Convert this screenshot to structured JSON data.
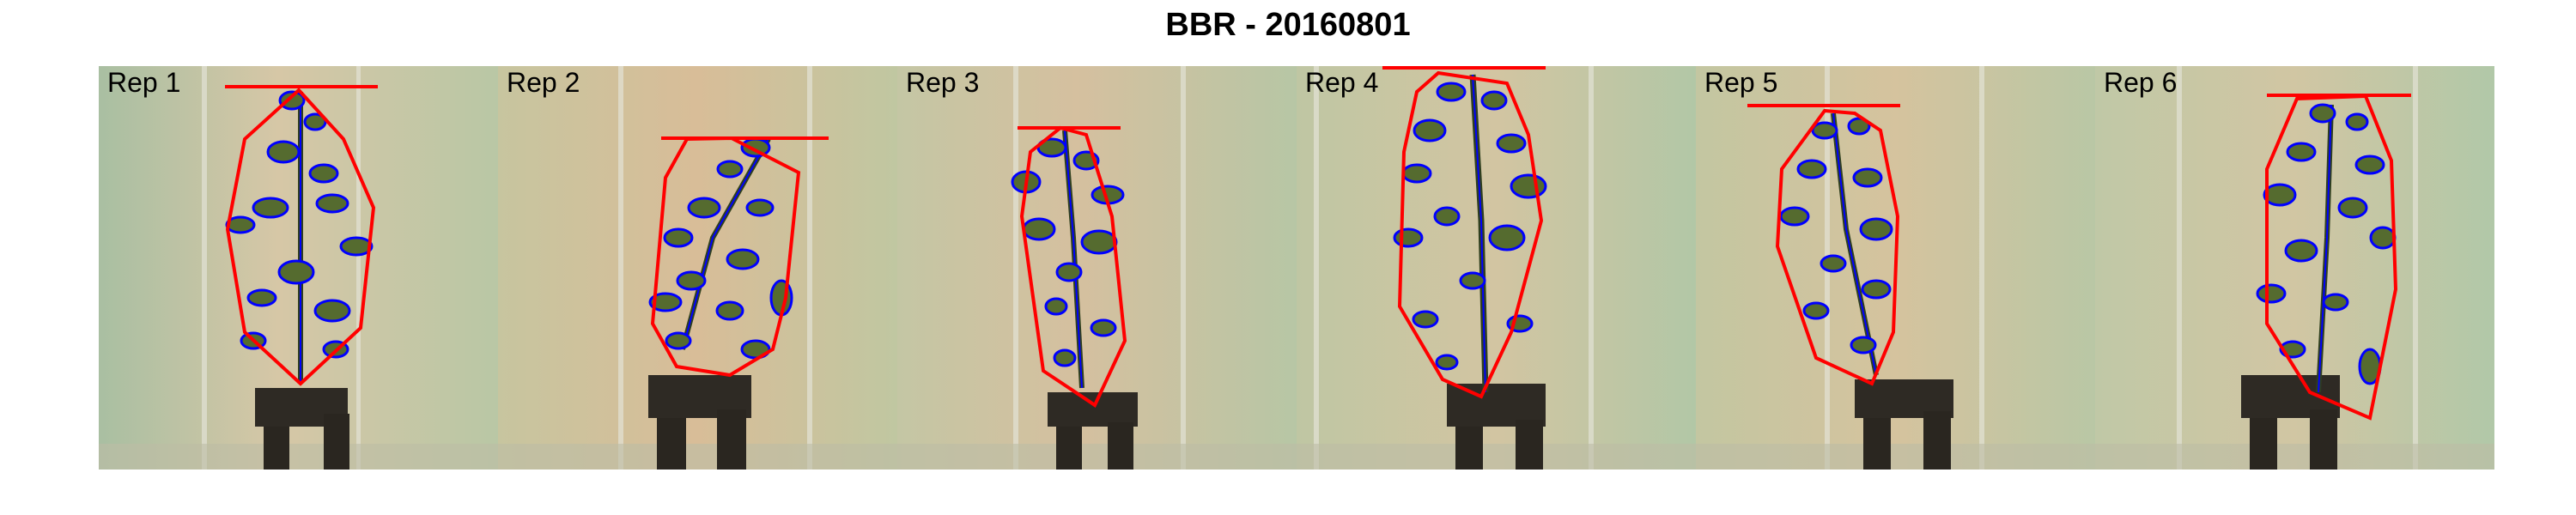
{
  "title": "BBR - 20160801",
  "panels": [
    {
      "label": "Rep 1"
    },
    {
      "label": "Rep 2"
    },
    {
      "label": "Rep 3"
    },
    {
      "label": "Rep 4"
    },
    {
      "label": "Rep 5"
    },
    {
      "label": "Rep 6"
    }
  ],
  "colors": {
    "hull_outline": "#ff0000",
    "plant_outline": "#0000ff",
    "leaf_fill": "#556b2f",
    "background": "#c9cfae"
  }
}
